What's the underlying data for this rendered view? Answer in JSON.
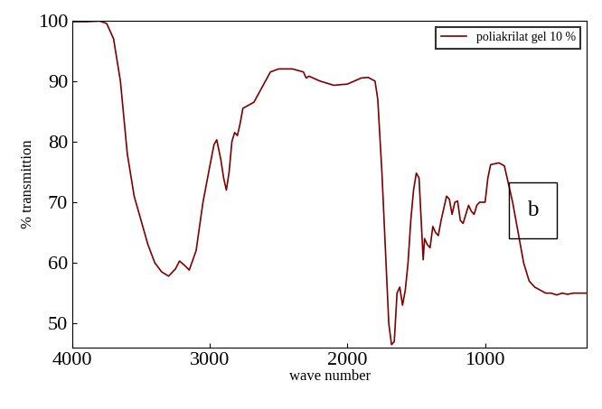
{
  "chart_data": {
    "type": "line",
    "x_label": "wave number",
    "y_label": "% transmittion",
    "xlim": [
      4000,
      260
    ],
    "ylim": [
      46,
      100
    ],
    "xticks": [
      4000,
      3000,
      2000,
      1000
    ],
    "yticks": [
      50,
      60,
      70,
      80,
      90,
      100
    ],
    "legend": "upper right",
    "annotations": [
      {
        "text": "b"
      }
    ],
    "series": [
      {
        "name": "poliakrilat gel 10 %",
        "color": "#800000",
        "line_style": "solid",
        "x": [
          4000,
          3900,
          3800,
          3750,
          3700,
          3650,
          3600,
          3550,
          3500,
          3450,
          3400,
          3350,
          3300,
          3250,
          3220,
          3180,
          3150,
          3100,
          3050,
          3000,
          2970,
          2950,
          2920,
          2900,
          2880,
          2860,
          2840,
          2820,
          2800,
          2780,
          2760,
          2720,
          2680,
          2620,
          2560,
          2500,
          2400,
          2320,
          2300,
          2280,
          2200,
          2100,
          2000,
          1900,
          1850,
          1800,
          1780,
          1750,
          1720,
          1700,
          1680,
          1660,
          1640,
          1620,
          1600,
          1580,
          1560,
          1540,
          1520,
          1500,
          1480,
          1460,
          1450,
          1440,
          1420,
          1400,
          1380,
          1360,
          1340,
          1320,
          1300,
          1280,
          1260,
          1240,
          1220,
          1200,
          1180,
          1160,
          1140,
          1120,
          1100,
          1080,
          1060,
          1040,
          1000,
          980,
          960,
          900,
          860,
          840,
          800,
          760,
          720,
          680,
          640,
          600,
          560,
          520,
          480,
          440,
          400,
          360,
          300,
          260
        ],
        "values": [
          99.8,
          99.8,
          99.9,
          99.5,
          97,
          90,
          78,
          71,
          67,
          63,
          60,
          58.5,
          57.8,
          59,
          60.3,
          59.5,
          58.8,
          62,
          70,
          76,
          79.5,
          80.3,
          77,
          74,
          72,
          75,
          80,
          81.5,
          81,
          83,
          85.5,
          86,
          86.5,
          89,
          91.5,
          92,
          92,
          91.5,
          90.5,
          90.8,
          90,
          89.3,
          89.5,
          90.5,
          90.6,
          90,
          87,
          75,
          60,
          50,
          46.5,
          47,
          55,
          56,
          53,
          55.5,
          60,
          67,
          72,
          74.8,
          74,
          65,
          60.5,
          64,
          63,
          62.5,
          66,
          65,
          64.5,
          67,
          69,
          71,
          70.5,
          68,
          70,
          70.2,
          67,
          66.5,
          68,
          69.5,
          68.5,
          68,
          69.5,
          70,
          70,
          74,
          76.2,
          76.5,
          76,
          74,
          70,
          65,
          60,
          57,
          56,
          55.5,
          55,
          55,
          54.7,
          55,
          54.8,
          55,
          55,
          55
        ]
      }
    ]
  }
}
